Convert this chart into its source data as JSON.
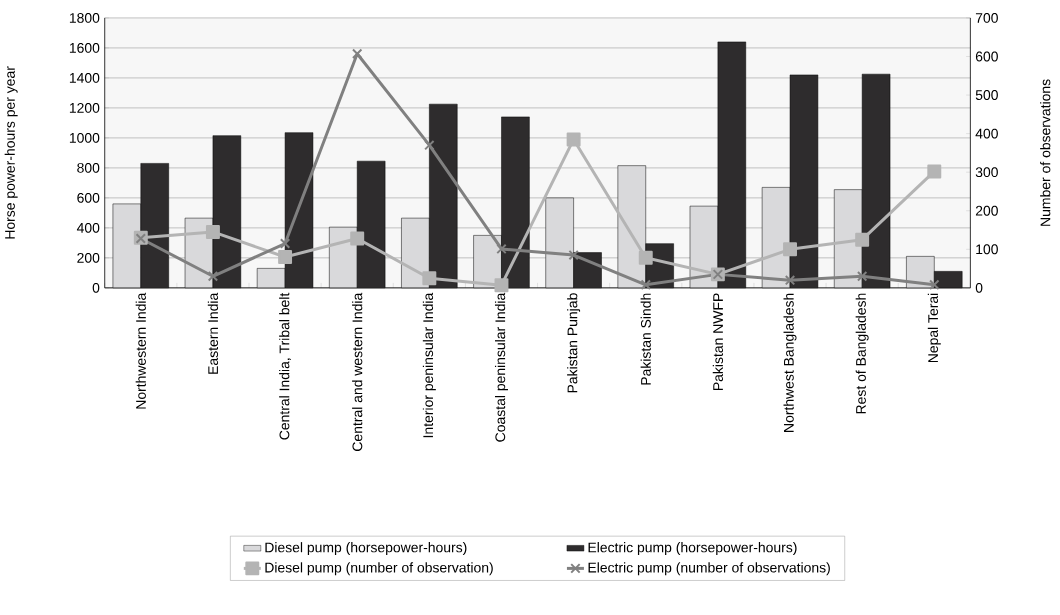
{
  "chart_data": {
    "type": "bar",
    "categories": [
      "Northwestern India",
      "Eastern India",
      "Central India, Tribal belt",
      "Central and western India",
      "Interior peninsular India",
      "Coastal peninsular India",
      "Pakistan Punjab",
      "Pakistan Sindh",
      "Pakistan NWFP",
      "Northwest Bangladesh",
      "Rest of  Bangladesh",
      "Nepal Terai"
    ],
    "series": [
      {
        "name": "Diesel pump (horsepower-hours)",
        "color": "#d9d9db",
        "values": [
          560,
          465,
          130,
          405,
          465,
          350,
          600,
          815,
          545,
          670,
          655,
          210
        ]
      },
      {
        "name": "Electric pump (horsepower-hours)",
        "color": "#2e2c2d",
        "values": [
          830,
          1015,
          1035,
          845,
          1225,
          1140,
          235,
          295,
          1640,
          1420,
          1425,
          110
        ]
      },
      {
        "name": "Diesel pump (number of observation)",
        "type": "line",
        "axis": "y2",
        "marker": "square",
        "color": "#b4b4b4",
        "values": [
          130,
          145,
          80,
          128,
          25,
          7,
          385,
          78,
          35,
          100,
          125,
          302
        ]
      },
      {
        "name": "Electric pump (number of observations)",
        "type": "line",
        "axis": "y2",
        "marker": "cross",
        "color": "#808080",
        "values": [
          128,
          30,
          115,
          607,
          370,
          101,
          85,
          8,
          35,
          20,
          30,
          8
        ]
      }
    ],
    "ylabel": "Horse power-hours per year",
    "y2label": "Number of observations",
    "ylim": [
      0,
      1800
    ],
    "yticks": [
      0,
      200,
      400,
      600,
      800,
      1000,
      1200,
      1400,
      1600,
      1800
    ],
    "y2lim": [
      0,
      700
    ],
    "y2ticks": [
      0,
      100,
      200,
      300,
      400,
      500,
      600,
      700
    ],
    "grid": "y",
    "legend": "bottom"
  }
}
